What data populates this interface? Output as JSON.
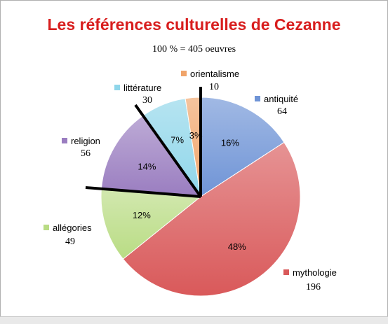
{
  "chart_data": {
    "type": "pie",
    "title": "Les références culturelles de Cezanne",
    "subtitle": "100 % = 405 oeuvres",
    "slices": [
      {
        "label": "antiquité",
        "value": 64,
        "percent_label": "16%",
        "color": "#6f94d6"
      },
      {
        "label": "mythologie",
        "value": 196,
        "percent_label": "48%",
        "color": "#d9595a"
      },
      {
        "label": "allégories",
        "value": 49,
        "percent_label": "12%",
        "color": "#b9dc84"
      },
      {
        "label": "religion",
        "value": 56,
        "percent_label": "14%",
        "color": "#9a7dc0"
      },
      {
        "label": "littérature",
        "value": 30,
        "percent_label": "7%",
        "color": "#8fd6ea"
      },
      {
        "label": "orientalisme",
        "value": 10,
        "percent_label": "3%",
        "color": "#f0a46a"
      }
    ]
  }
}
